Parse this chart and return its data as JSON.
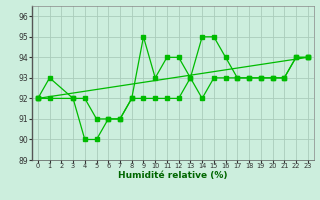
{
  "title": "",
  "xlabel": "Humidité relative (%)",
  "ylabel": "",
  "background_color": "#cceedd",
  "grid_color": "#aaccbb",
  "line_color": "#00bb00",
  "xlim": [
    -0.5,
    23.5
  ],
  "ylim": [
    89,
    96.5
  ],
  "yticks": [
    89,
    90,
    91,
    92,
    93,
    94,
    95,
    96
  ],
  "xticks": [
    0,
    1,
    2,
    3,
    4,
    5,
    6,
    7,
    8,
    9,
    10,
    11,
    12,
    13,
    14,
    15,
    16,
    17,
    18,
    19,
    20,
    21,
    22,
    23
  ],
  "xtick_labels": [
    "0",
    "1",
    "2",
    "3",
    "4",
    "5",
    "6",
    "7",
    "8",
    "9",
    "10",
    "11",
    "12",
    "13",
    "14",
    "15",
    "16",
    "17",
    "18",
    "19",
    "20",
    "21",
    "22",
    "23"
  ],
  "line1_x": [
    0,
    1,
    3,
    4,
    5,
    6,
    7,
    8,
    9,
    10,
    11,
    12,
    13,
    14,
    15,
    16,
    17,
    18,
    19,
    20,
    21,
    22,
    23
  ],
  "line1_y": [
    92,
    93,
    92,
    90,
    90,
    91,
    91,
    92,
    95,
    93,
    94,
    94,
    93,
    95,
    95,
    94,
    93,
    93,
    93,
    93,
    93,
    94,
    94
  ],
  "line2_x": [
    0,
    1,
    3,
    4,
    5,
    6,
    7,
    8,
    9,
    10,
    11,
    12,
    13,
    14,
    15,
    16,
    17,
    18,
    19,
    20,
    21,
    22,
    23
  ],
  "line2_y": [
    92,
    92,
    92,
    92,
    91,
    91,
    91,
    92,
    92,
    92,
    92,
    92,
    93,
    92,
    93,
    93,
    93,
    93,
    93,
    93,
    93,
    94,
    94
  ],
  "line3_x": [
    0,
    23
  ],
  "line3_y": [
    92,
    94
  ]
}
